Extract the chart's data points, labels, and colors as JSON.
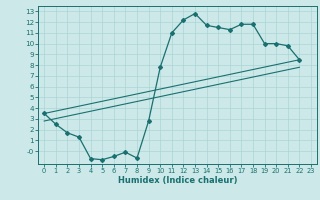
{
  "xlabel": "Humidex (Indice chaleur)",
  "bg_color": "#cce8e8",
  "line_color": "#1a7070",
  "grid_color": "#aad4d4",
  "xlim": [
    -0.5,
    23.5
  ],
  "ylim": [
    -1.2,
    13.5
  ],
  "xticks": [
    0,
    1,
    2,
    3,
    4,
    5,
    6,
    7,
    8,
    9,
    10,
    11,
    12,
    13,
    14,
    15,
    16,
    17,
    18,
    19,
    20,
    21,
    22,
    23
  ],
  "yticks": [
    0,
    1,
    2,
    3,
    4,
    5,
    6,
    7,
    8,
    9,
    10,
    11,
    12,
    13
  ],
  "curve_x": [
    0,
    1,
    2,
    3,
    4,
    5,
    6,
    7,
    8,
    9,
    10,
    11,
    12,
    13,
    14,
    15,
    16,
    17,
    18,
    19,
    20,
    21,
    22
  ],
  "curve_y": [
    3.5,
    2.5,
    1.7,
    1.3,
    -0.7,
    -0.8,
    -0.5,
    -0.1,
    -0.65,
    2.8,
    7.8,
    11.0,
    12.2,
    12.8,
    11.7,
    11.5,
    11.3,
    11.8,
    11.8,
    10.0,
    10.0,
    9.8,
    8.5
  ],
  "line1_x": [
    0,
    22
  ],
  "line1_y": [
    3.5,
    8.5
  ],
  "line2_x": [
    0,
    22
  ],
  "line2_y": [
    2.8,
    7.8
  ],
  "ytick_labels": [
    "-0",
    "1",
    "2",
    "3",
    "4",
    "5",
    "6",
    "7",
    "8",
    "9",
    "10",
    "11",
    "12",
    "13"
  ]
}
